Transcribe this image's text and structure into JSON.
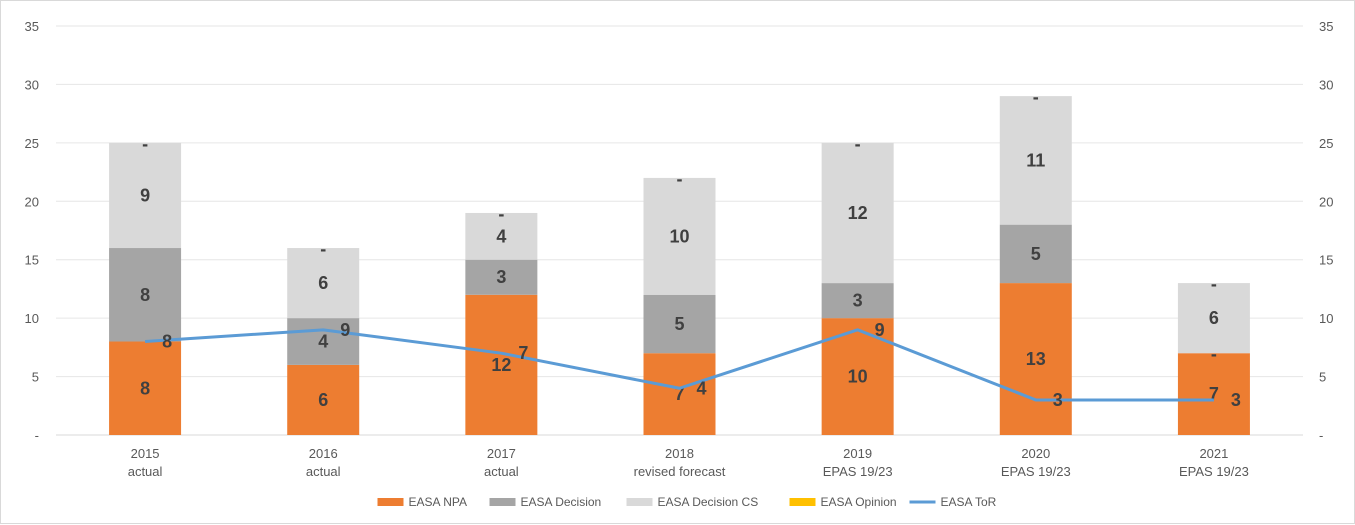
{
  "chart_data": {
    "type": "bar",
    "stacked": true,
    "categories": [
      [
        "2015",
        "actual"
      ],
      [
        "2016",
        "actual"
      ],
      [
        "2017",
        "actual"
      ],
      [
        "2018",
        "revised forecast"
      ],
      [
        "2019",
        "EPAS 19/23"
      ],
      [
        "2020",
        "EPAS 19/23"
      ],
      [
        "2021",
        "EPAS 19/23"
      ]
    ],
    "ylim": [
      0,
      35
    ],
    "yticks": [
      "-",
      "5",
      "10",
      "15",
      "20",
      "25",
      "30",
      "35"
    ],
    "grid": true,
    "legend_position": "bottom",
    "series": [
      {
        "name": "EASA NPA",
        "color": "#ed7d31",
        "values": [
          8,
          6,
          12,
          7,
          10,
          13,
          7
        ],
        "labels": [
          "8",
          "6",
          "12",
          "7",
          "10",
          "13",
          "7"
        ]
      },
      {
        "name": "EASA Decision",
        "color": "#a5a5a5",
        "values": [
          8,
          4,
          3,
          5,
          3,
          5,
          0
        ],
        "labels": [
          "8",
          "4",
          "3",
          "5",
          "3",
          "5",
          "-"
        ]
      },
      {
        "name": "EASA Decision CS",
        "color": "#d9d9d9",
        "values": [
          9,
          6,
          4,
          10,
          12,
          11,
          6
        ],
        "labels": [
          "9",
          "6",
          "4",
          "10",
          "12",
          "11",
          "6"
        ]
      },
      {
        "name": "EASA Opinion",
        "color": "#ffc000",
        "values": [
          0,
          0,
          0,
          0,
          0,
          0,
          0
        ],
        "labels": [
          "-",
          "-",
          "-",
          "-",
          "-",
          "-",
          "-"
        ]
      }
    ],
    "line_series": {
      "name": "EASA ToR",
      "color": "#5b9bd5",
      "values": [
        8,
        9,
        7,
        4,
        9,
        3,
        3
      ],
      "labels": [
        "8",
        "9",
        "7",
        "4",
        "9",
        "3",
        "3"
      ]
    }
  }
}
